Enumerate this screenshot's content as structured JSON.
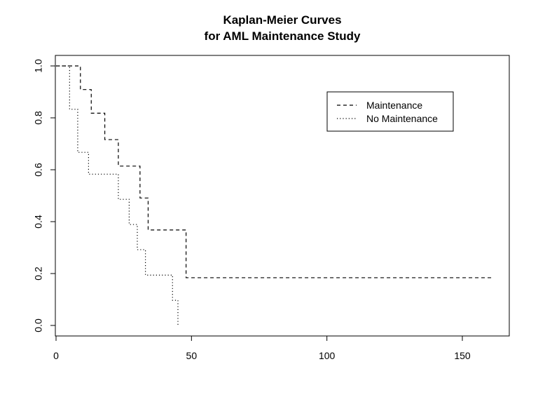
{
  "chart_data": {
    "type": "line",
    "title": [
      "Kaplan-Meier Curves",
      "for AML Maintenance Study"
    ],
    "xlabel": "",
    "ylabel": "",
    "xlim": [
      0,
      165
    ],
    "ylim": [
      0,
      1
    ],
    "x_ticks": [
      0,
      50,
      100,
      150
    ],
    "x_tick_labels": [
      "0",
      "50",
      "100",
      "150"
    ],
    "y_ticks": [
      0,
      0.2,
      0.4,
      0.6,
      0.8,
      1.0
    ],
    "y_tick_labels": [
      "0.0",
      "0.2",
      "0.4",
      "0.6",
      "0.8",
      "1.0"
    ],
    "grid": false,
    "legend_position": "top-right",
    "series": [
      {
        "name": "Maintenance",
        "line_style": "dashed",
        "color": "#000000",
        "x": [
          0,
          9,
          13,
          18,
          23,
          31,
          34,
          48,
          161
        ],
        "y": [
          1.0,
          0.909,
          0.818,
          0.716,
          0.614,
          0.491,
          0.368,
          0.184,
          0.184
        ]
      },
      {
        "name": "No Maintenance",
        "line_style": "dotted",
        "color": "#000000",
        "x": [
          0,
          5,
          8,
          12,
          23,
          27,
          30,
          33,
          43,
          45
        ],
        "y": [
          1.0,
          0.833,
          0.667,
          0.583,
          0.486,
          0.389,
          0.292,
          0.194,
          0.097,
          0.0
        ]
      }
    ]
  }
}
